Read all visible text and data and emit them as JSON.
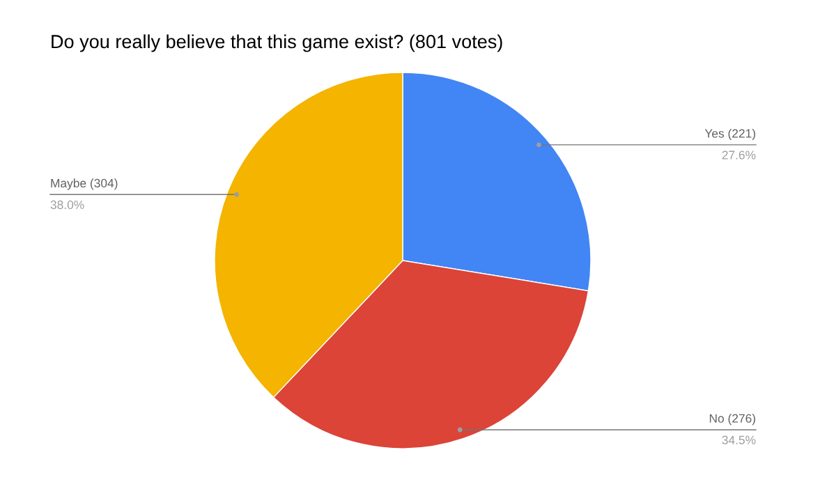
{
  "chart_data": {
    "type": "pie",
    "title": "Do you really believe that this game exist? (801 votes)",
    "categories": [
      "Yes (221)",
      "No (276)",
      "Maybe (304)"
    ],
    "values": [
      27.6,
      34.5,
      38.0
    ],
    "colors": [
      "#4285f4",
      "#db4437",
      "#f4b400"
    ],
    "value_labels": [
      "27.6%",
      "34.5%",
      "38.0%"
    ]
  }
}
